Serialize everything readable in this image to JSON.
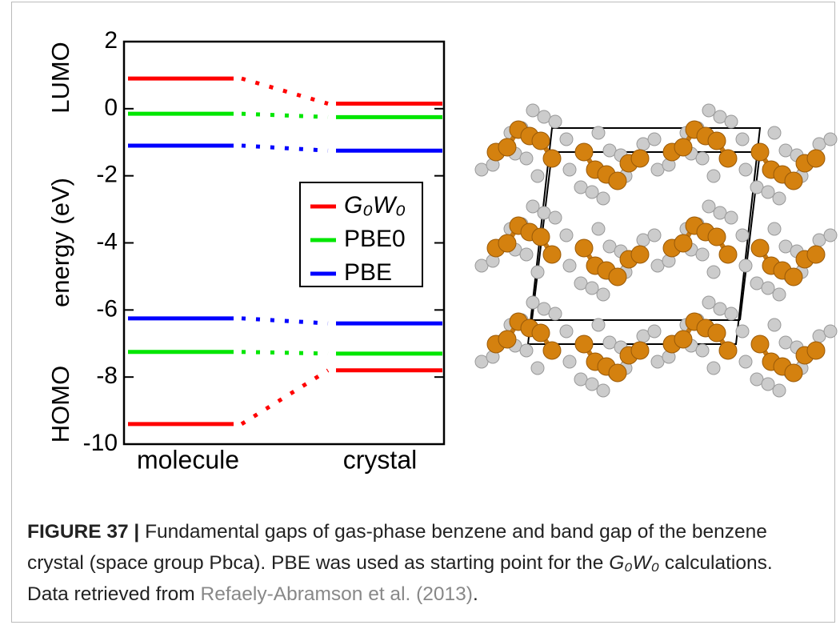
{
  "chart_data": {
    "type": "energy-levels",
    "y_label": "energy (eV)",
    "upper_label": "LUMO",
    "lower_label": "HOMO",
    "categories": [
      "molecule",
      "crystal"
    ],
    "ylim": [
      -10,
      2
    ],
    "yticks": [
      2,
      0,
      -2,
      -4,
      -6,
      -8,
      -10
    ],
    "series": [
      {
        "name": "G₀W₀",
        "color": "#ff0000",
        "lumo": [
          0.9,
          0.15
        ],
        "homo": [
          -9.4,
          -7.8
        ]
      },
      {
        "name": "PBE0",
        "color": "#00e600",
        "lumo": [
          -0.15,
          -0.25
        ],
        "homo": [
          -7.25,
          -7.3
        ]
      },
      {
        "name": "PBE",
        "color": "#0000ff",
        "lumo": [
          -1.1,
          -1.25
        ],
        "homo": [
          -6.25,
          -6.4
        ]
      }
    ]
  },
  "caption": {
    "label": "FIGURE 37 |",
    "text_before": "Fundamental gaps of gas-phase benzene and band gap of the benzene crystal (space group Pbca). PBE was used as starting point for the",
    "formula": "G₀W₀",
    "text_middle": "calculations. Data retrieved from",
    "link": "Refaely-Abramson et al. (2013)",
    "text_after": "."
  }
}
